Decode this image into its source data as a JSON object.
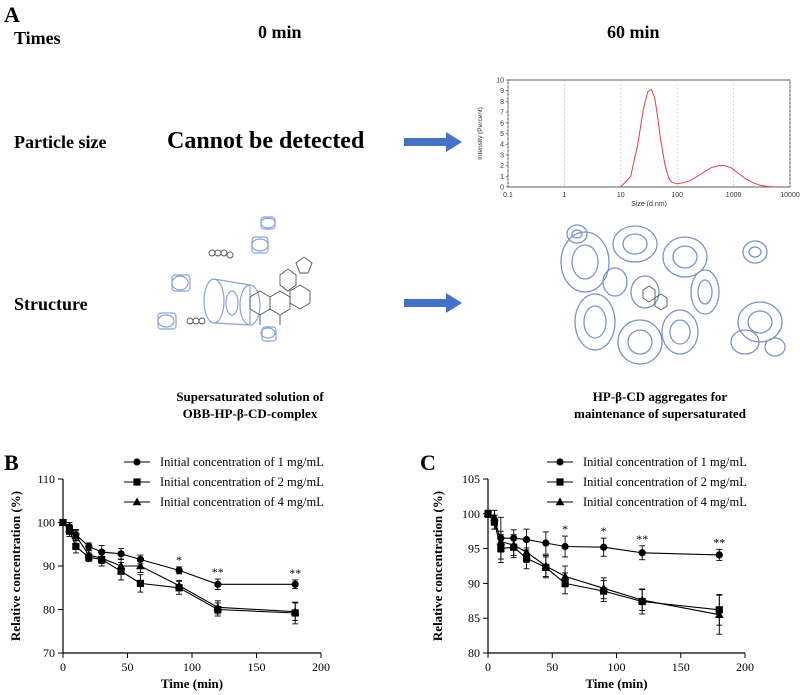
{
  "panel_A": {
    "letter": "A",
    "times_label": "Times",
    "col_0": "0 min",
    "col_60": "60 min",
    "particle_size_label": "Particle size",
    "cannot_detect": "Cannot be detected",
    "structure_label": "Structure",
    "caption_left_1": "Supersaturated solution of",
    "caption_left_2": "OBB-HP-β-CD-complex",
    "caption_right_1": "HP-β-CD aggregates for",
    "caption_right_2": "maintenance of supersaturated",
    "arrow_color": "#4472C4"
  },
  "panel_B_letter": "B",
  "panel_C_letter": "C",
  "chart_data": [
    {
      "id": "A-inset",
      "type": "line",
      "xlabel": "Size (d.nm)",
      "ylabel": "Intensity (Percent)",
      "xscale": "log",
      "xlim": [
        0.1,
        10000
      ],
      "ylim": [
        0,
        10
      ],
      "xticks": [
        "0.1",
        "1",
        "10",
        "100",
        "1000",
        "10000"
      ],
      "yticks": [
        "0",
        "1",
        "2",
        "3",
        "4",
        "5",
        "6",
        "7",
        "8",
        "9",
        "10"
      ],
      "color": "#e04040",
      "x": [
        10,
        15,
        20,
        25,
        30,
        35,
        40,
        45,
        50,
        60,
        70,
        80,
        100,
        130,
        170,
        220,
        300,
        400,
        550,
        700,
        900,
        1200,
        1600,
        2200,
        3000,
        4000,
        5500
      ],
      "y": [
        0,
        1.0,
        4.0,
        7.2,
        8.9,
        9.1,
        8.3,
        6.6,
        4.7,
        2.2,
        0.9,
        0.45,
        0.3,
        0.4,
        0.6,
        0.95,
        1.4,
        1.8,
        2.0,
        2.0,
        1.8,
        1.3,
        0.8,
        0.4,
        0.15,
        0.05,
        0
      ]
    },
    {
      "id": "B",
      "type": "line",
      "xlabel": "Time (min)",
      "ylabel": "Relative concentration (%)",
      "xlim": [
        0,
        200
      ],
      "ylim": [
        70,
        110
      ],
      "xticks": [
        "0",
        "50",
        "100",
        "150",
        "200"
      ],
      "yticks": [
        "70",
        "80",
        "90",
        "100",
        "110"
      ],
      "legend": "top-right",
      "x": [
        0,
        5,
        10,
        20,
        30,
        45,
        60,
        90,
        120,
        180
      ],
      "series": [
        {
          "name": "Initial concentration of 1 mg/mL",
          "marker": "circle",
          "values": [
            100,
            99.0,
            97.2,
            94.5,
            93.2,
            92.8,
            91.5,
            89.0,
            85.8,
            85.8
          ],
          "err": [
            0.5,
            1.0,
            1.2,
            0.8,
            1.5,
            1.2,
            1.0,
            0.8,
            1.2,
            1.0
          ]
        },
        {
          "name": "Initial concentration of 2 mg/mL",
          "marker": "square",
          "values": [
            100,
            98.0,
            94.5,
            92.0,
            91.5,
            88.8,
            86.0,
            85.0,
            80.0,
            79.2
          ],
          "err": [
            0.5,
            1.2,
            1.5,
            1.0,
            1.5,
            2.0,
            2.0,
            1.5,
            1.5,
            2.5
          ]
        },
        {
          "name": "Initial concentration of 4 mg/mL",
          "marker": "triangle",
          "values": [
            100,
            98.5,
            97.0,
            92.5,
            91.8,
            90.0,
            90.0,
            85.5,
            80.5,
            79.5
          ],
          "err": [
            0.5,
            1.0,
            1.2,
            1.0,
            1.2,
            1.5,
            1.5,
            1.2,
            1.5,
            2.0
          ]
        }
      ],
      "annotations": [
        {
          "x": 90,
          "text": "*"
        },
        {
          "x": 120,
          "text": "**"
        },
        {
          "x": 180,
          "text": "**"
        }
      ]
    },
    {
      "id": "C",
      "type": "line",
      "xlabel": "Time (min)",
      "ylabel": "Relative concentration (%)",
      "xlim": [
        0,
        200
      ],
      "ylim": [
        80,
        105
      ],
      "xticks": [
        "0",
        "50",
        "100",
        "150",
        "200"
      ],
      "yticks": [
        "80",
        "85",
        "90",
        "95",
        "100",
        "105"
      ],
      "legend": "top-right",
      "x": [
        0,
        5,
        10,
        20,
        30,
        45,
        60,
        90,
        120,
        180
      ],
      "series": [
        {
          "name": "Initial concentration of 1 mg/mL",
          "marker": "circle",
          "values": [
            100,
            98.8,
            96.5,
            96.5,
            96.3,
            95.8,
            95.3,
            95.2,
            94.4,
            94.1
          ],
          "err": [
            0.5,
            1.0,
            3.0,
            1.2,
            1.5,
            1.6,
            1.5,
            1.3,
            1.0,
            0.8
          ]
        },
        {
          "name": "Initial concentration of 2 mg/mL",
          "marker": "square",
          "values": [
            100,
            98.8,
            95.0,
            95.2,
            93.6,
            92.3,
            90.0,
            88.9,
            87.4,
            86.2
          ],
          "err": [
            0.5,
            1.0,
            2.0,
            1.5,
            1.5,
            1.5,
            1.5,
            1.5,
            1.8,
            2.2
          ]
        },
        {
          "name": "Initial concentration of 4 mg/mL",
          "marker": "triangle",
          "values": [
            100,
            99.5,
            96.0,
            95.5,
            94.5,
            92.5,
            91.0,
            89.3,
            87.6,
            85.5
          ],
          "err": [
            0.5,
            1.0,
            1.5,
            1.5,
            1.5,
            1.5,
            1.5,
            1.5,
            1.5,
            2.8
          ]
        }
      ],
      "annotations": [
        {
          "x": 60,
          "text": "*"
        },
        {
          "x": 90,
          "text": "*"
        },
        {
          "x": 120,
          "text": "**"
        },
        {
          "x": 180,
          "text": "**"
        }
      ]
    }
  ]
}
